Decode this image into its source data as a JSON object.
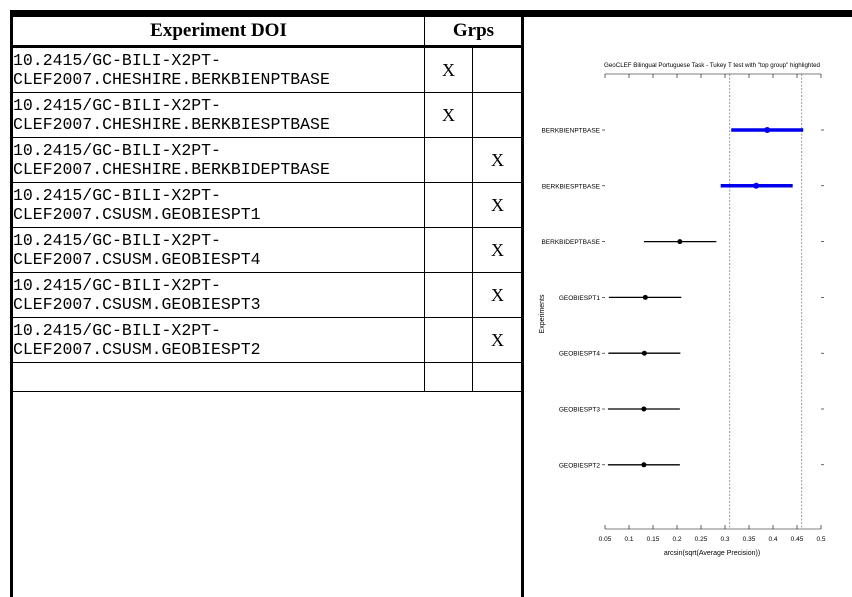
{
  "table": {
    "header_doi": "Experiment DOI",
    "header_grps": "Grps",
    "rows": [
      {
        "doi_line1": "10.2415/GC-BILI-X2PT-",
        "doi_line2": "CLEF2007.CHESHIRE.BERKBIENPTBASE",
        "grp1": "X",
        "grp2": ""
      },
      {
        "doi_line1": "10.2415/GC-BILI-X2PT-",
        "doi_line2": "CLEF2007.CHESHIRE.BERKBIESPTBASE",
        "grp1": "X",
        "grp2": ""
      },
      {
        "doi_line1": "10.2415/GC-BILI-X2PT-",
        "doi_line2": "CLEF2007.CHESHIRE.BERKBIDEPTBASE",
        "grp1": "",
        "grp2": "X"
      },
      {
        "doi_line1": "10.2415/GC-BILI-X2PT-",
        "doi_line2": "CLEF2007.CSUSM.GEOBIESPT1",
        "grp1": "",
        "grp2": "X"
      },
      {
        "doi_line1": "10.2415/GC-BILI-X2PT-",
        "doi_line2": "CLEF2007.CSUSM.GEOBIESPT4",
        "grp1": "",
        "grp2": "X"
      },
      {
        "doi_line1": "10.2415/GC-BILI-X2PT-",
        "doi_line2": "CLEF2007.CSUSM.GEOBIESPT3",
        "grp1": "",
        "grp2": "X"
      },
      {
        "doi_line1": "10.2415/GC-BILI-X2PT-",
        "doi_line2": "CLEF2007.CSUSM.GEOBIESPT2",
        "grp1": "",
        "grp2": "X"
      }
    ]
  },
  "chart_data": {
    "type": "scatter",
    "title": "GeoCLEF Bilingual Portuguese Task - Tukey T test with \"top group\" highlighted",
    "xlabel": "arcsin(sqrt(Average Precision))",
    "ylabel": "Experiments",
    "xlim": [
      0.05,
      0.5
    ],
    "xticks": [
      "0.05",
      "0.1",
      "0.15",
      "0.2",
      "0.25",
      "0.3",
      "0.35",
      "0.4",
      "0.45",
      "0.5"
    ],
    "reference_lines": [
      0.31,
      0.46
    ],
    "highlight_color": "#0000ee",
    "normal_color": "#000000",
    "series": [
      {
        "label": "BERKBIENPTBASE",
        "mean": 0.388,
        "low": 0.313,
        "high": 0.463,
        "highlight": true
      },
      {
        "label": "BERKBIESPTBASE",
        "mean": 0.365,
        "low": 0.291,
        "high": 0.441,
        "highlight": true
      },
      {
        "label": "BERKBIDEPTBASE",
        "mean": 0.206,
        "low": 0.131,
        "high": 0.282,
        "highlight": false
      },
      {
        "label": "GEOBIESPT1",
        "mean": 0.134,
        "low": 0.058,
        "high": 0.209,
        "highlight": false
      },
      {
        "label": "GEOBIESPT4",
        "mean": 0.132,
        "low": 0.057,
        "high": 0.207,
        "highlight": false
      },
      {
        "label": "GEOBIESPT3",
        "mean": 0.131,
        "low": 0.056,
        "high": 0.206,
        "highlight": false
      },
      {
        "label": "GEOBIESPT2",
        "mean": 0.131,
        "low": 0.056,
        "high": 0.206,
        "highlight": false
      }
    ]
  }
}
